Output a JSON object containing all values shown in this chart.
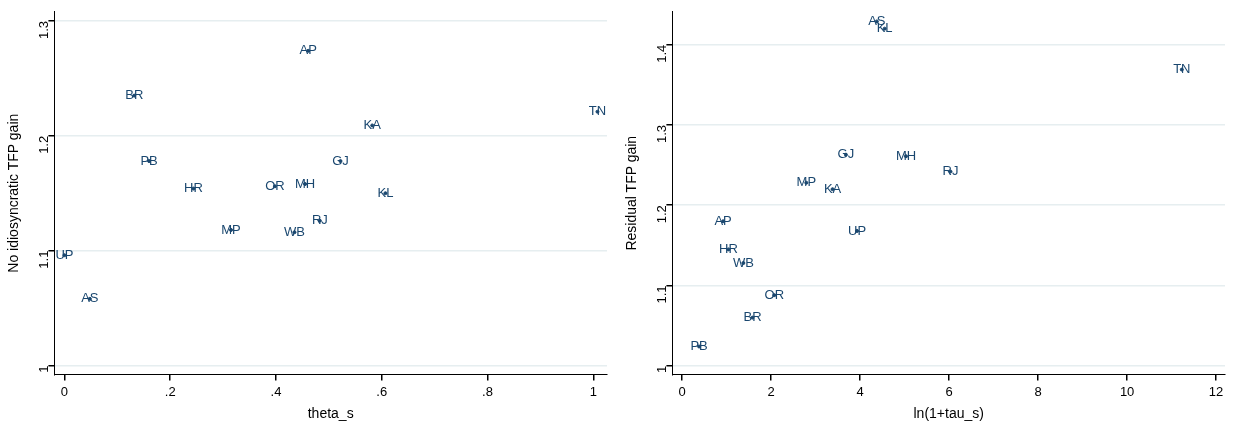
{
  "chart_data": [
    {
      "type": "scatter",
      "xlabel": "theta_s",
      "ylabel": "No idiosyncratic TFP gain",
      "marker": "circle",
      "grid": "y",
      "legend": false,
      "x": [
        0.461,
        0.132,
        1.008,
        0.582,
        0.16,
        0.522,
        0.244,
        0.398,
        0.455,
        0.607,
        0.483,
        0.315,
        0.435,
        0.0,
        0.048
      ],
      "values": [
        1.274,
        1.235,
        1.221,
        1.209,
        1.178,
        1.178,
        1.154,
        1.156,
        1.158,
        1.15,
        1.126,
        1.118,
        1.116,
        1.096,
        1.058
      ],
      "value_labels": [
        "AP",
        "BR",
        "TN",
        "KA",
        "PB",
        "GJ",
        "HR",
        "OR",
        "MH",
        "KL",
        "RJ",
        "MP",
        "WB",
        "UP",
        "AS"
      ],
      "color": "#1a476f",
      "xlim": [
        -0.019,
        1.026
      ],
      "xticks": [
        0,
        {
          "value": 0.2,
          "label": ".2"
        },
        {
          "value": 0.4,
          "label": ".4"
        },
        {
          "value": 0.6,
          "label": ".6"
        },
        {
          "value": 0.8,
          "label": ".8"
        },
        1
      ],
      "ylim": [
        0.992,
        1.308
      ],
      "yticks": [
        1,
        1.1,
        1.2,
        1.3
      ]
    },
    {
      "type": "scatter",
      "xlabel": "ln(1+tau_s)",
      "ylabel": "Residual TFP gain",
      "marker": "circle",
      "grid": "y",
      "legend": false,
      "x": [
        4.375,
        4.55,
        11.23,
        3.68,
        5.03,
        6.03,
        2.79,
        3.38,
        0.92,
        3.93,
        1.04,
        1.375,
        2.07,
        1.58,
        0.38
      ],
      "values": [
        1.429,
        1.42,
        1.369,
        1.263,
        1.261,
        1.242,
        1.228,
        1.22,
        1.18,
        1.168,
        1.145,
        1.128,
        1.088,
        1.06,
        1.024
      ],
      "value_labels": [
        "AS",
        "KL",
        "TN",
        "GJ",
        "MH",
        "RJ",
        "MP",
        "KA",
        "AP",
        "UP",
        "HR",
        "WB",
        "OR",
        "BR",
        "PB"
      ],
      "color": "#1a476f",
      "xlim": [
        -0.22,
        12.2
      ],
      "xticks": [
        0,
        2,
        4,
        6,
        8,
        10,
        12
      ],
      "ylim": [
        0.989,
        1.441
      ],
      "yticks": [
        1,
        1.1,
        1.2,
        1.3,
        1.4
      ]
    }
  ]
}
